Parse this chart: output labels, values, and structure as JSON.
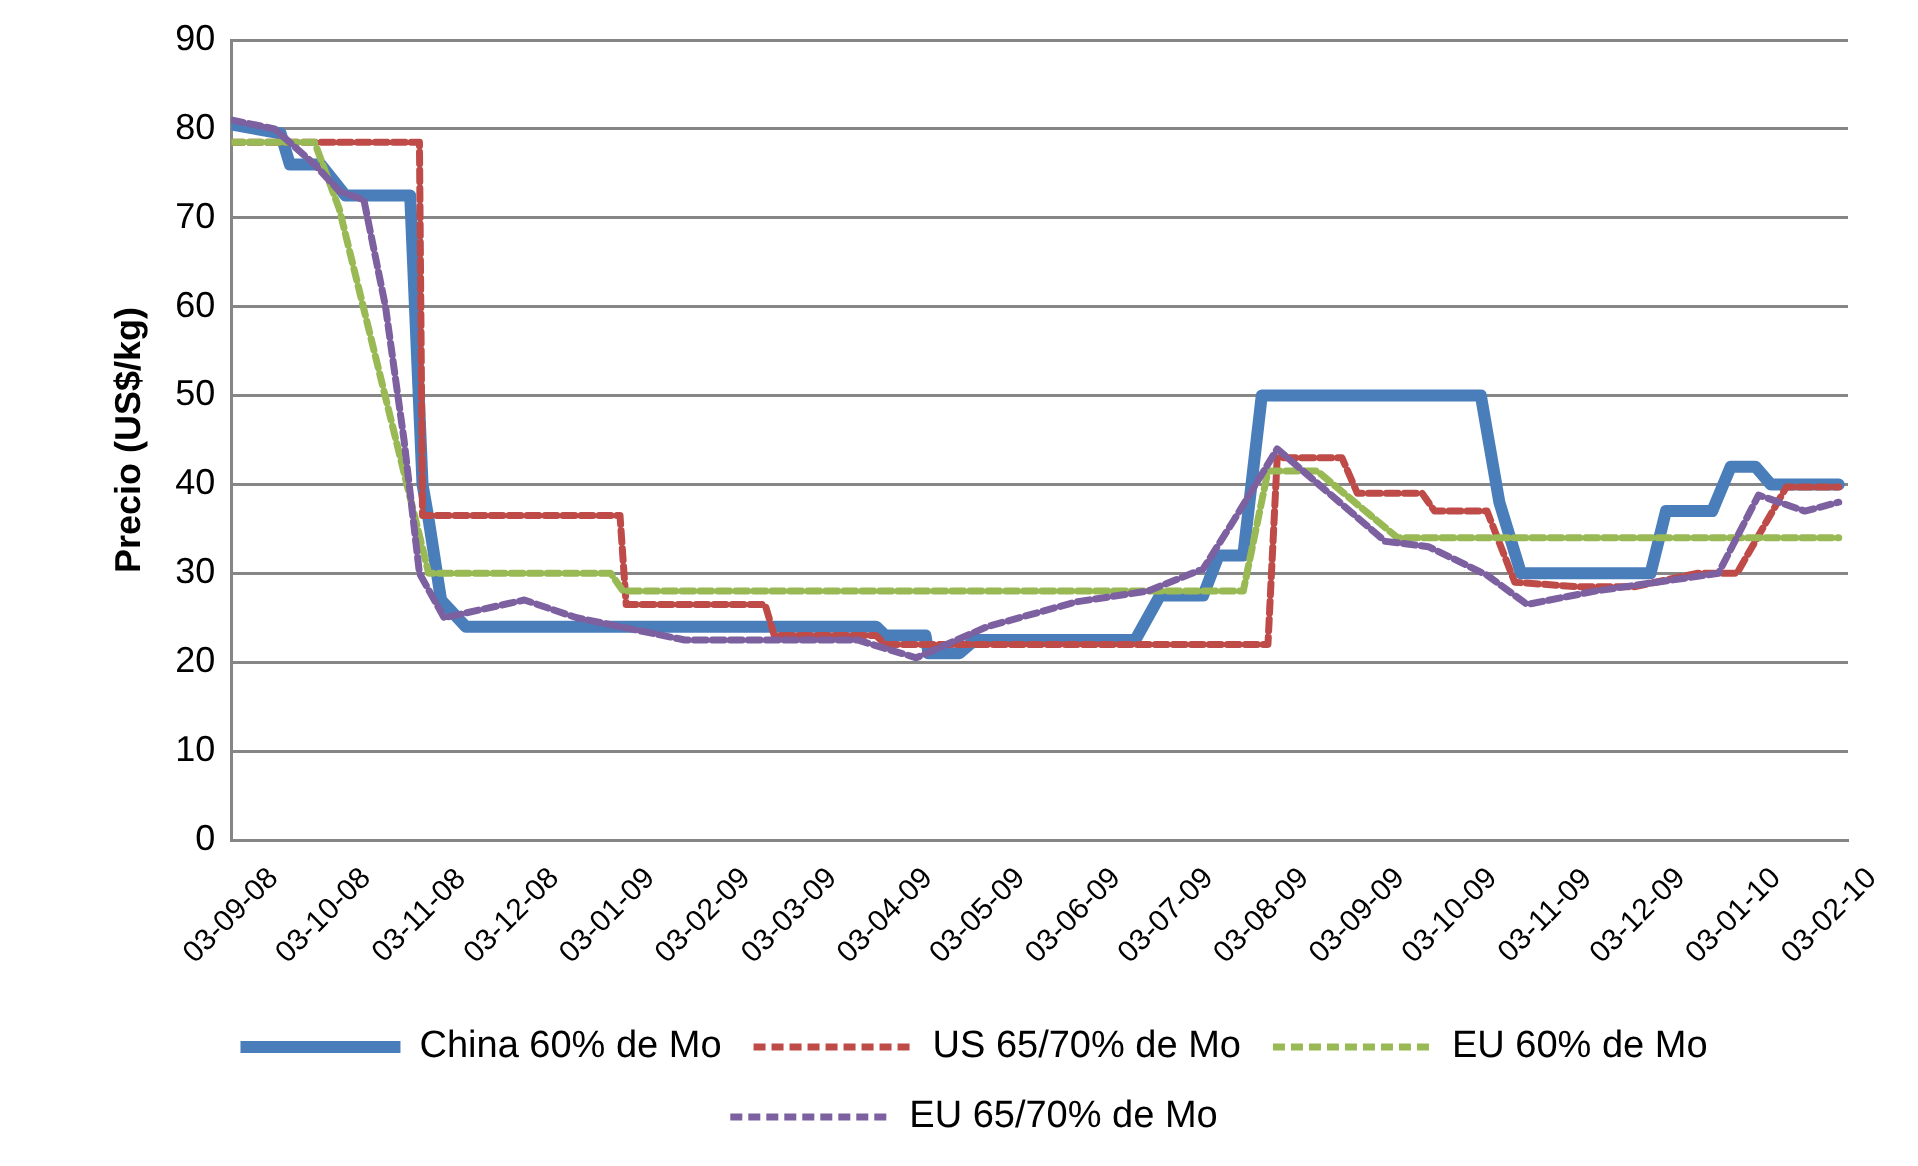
{
  "chart_data": {
    "type": "line",
    "ylabel": "Precio (US$/kg)",
    "xlim": [
      "2008-09-03",
      "2010-02-09"
    ],
    "xticks": [
      {
        "value": "2008-09-03",
        "label": "03-09-08"
      },
      {
        "value": "2008-10-03",
        "label": "03-10-08"
      },
      {
        "value": "2008-11-03",
        "label": "03-11-08"
      },
      {
        "value": "2008-12-03",
        "label": "03-12-08"
      },
      {
        "value": "2009-01-03",
        "label": "03-01-09"
      },
      {
        "value": "2009-02-03",
        "label": "03-02-09"
      },
      {
        "value": "2009-03-03",
        "label": "03-03-09"
      },
      {
        "value": "2009-04-03",
        "label": "03-04-09"
      },
      {
        "value": "2009-05-03",
        "label": "03-05-09"
      },
      {
        "value": "2009-06-03",
        "label": "03-06-09"
      },
      {
        "value": "2009-07-03",
        "label": "03-07-09"
      },
      {
        "value": "2009-08-03",
        "label": "03-08-09"
      },
      {
        "value": "2009-09-03",
        "label": "03-09-09"
      },
      {
        "value": "2009-10-03",
        "label": "03-10-09"
      },
      {
        "value": "2009-11-03",
        "label": "03-11-09"
      },
      {
        "value": "2009-12-03",
        "label": "03-12-09"
      },
      {
        "value": "2010-01-03",
        "label": "03-01-10"
      },
      {
        "value": "2010-02-03",
        "label": "03-02-10"
      }
    ],
    "ylim": [
      0,
      90
    ],
    "yticks": [
      0,
      10,
      20,
      30,
      40,
      50,
      60,
      70,
      80,
      90
    ],
    "grid": "y",
    "legend": "bottom",
    "marker": "none",
    "series": [
      {
        "name": "China 60% de Mo",
        "color": "#4a7ebb",
        "line_style": "solid",
        "x": [
          "2008-09-03",
          "2008-09-19",
          "2008-09-22",
          "2008-10-02",
          "2008-10-10",
          "2008-10-31",
          "2008-11-04",
          "2008-11-06",
          "2008-11-10",
          "2008-11-18",
          "2009-03-31",
          "2009-04-03",
          "2009-04-16",
          "2009-04-17",
          "2009-04-27",
          "2009-05-02",
          "2009-06-23",
          "2009-07-01",
          "2009-07-15",
          "2009-07-20",
          "2009-07-28",
          "2009-08-03",
          "2009-10-13",
          "2009-10-19",
          "2009-10-26",
          "2009-12-07",
          "2009-12-12",
          "2009-12-27",
          "2010-01-02",
          "2010-01-10",
          "2010-01-15",
          "2010-02-06"
        ],
        "values": [
          80.5,
          79.5,
          76,
          76,
          72.5,
          72.5,
          40,
          36,
          27,
          24,
          24,
          23,
          23,
          21,
          21,
          22.5,
          22.5,
          27.5,
          27.5,
          32,
          32,
          50,
          50,
          38,
          30,
          30,
          37,
          37,
          42,
          42,
          40,
          40
        ]
      },
      {
        "name": "US 65/70% de Mo",
        "color": "#be4b48",
        "line_style": "dashed",
        "x": [
          "2008-09-03",
          "2008-11-03",
          "2008-11-04",
          "2009-01-07",
          "2009-01-09",
          "2009-02-23",
          "2009-02-26",
          "2009-03-31",
          "2009-04-03",
          "2009-08-05",
          "2009-08-08",
          "2009-08-29",
          "2009-09-03",
          "2009-09-24",
          "2009-09-28",
          "2009-10-15",
          "2009-10-24",
          "2009-11-13",
          "2009-12-02",
          "2009-12-22",
          "2010-01-04",
          "2010-01-20",
          "2010-02-06"
        ],
        "values": [
          78.5,
          78.5,
          36.5,
          36.5,
          26.5,
          26.5,
          23,
          23,
          22,
          22,
          43,
          43,
          39,
          39,
          37,
          37,
          29,
          28.5,
          28.5,
          30,
          30,
          39.7,
          39.7
        ]
      },
      {
        "name": "EU 60% de Mo",
        "color": "#98b954",
        "line_style": "dashed",
        "x": [
          "2008-09-03",
          "2008-09-30",
          "2008-10-08",
          "2008-11-06",
          "2009-01-04",
          "2009-01-08",
          "2009-07-28",
          "2009-08-05",
          "2009-08-21",
          "2009-09-16",
          "2010-02-06"
        ],
        "values": [
          78.5,
          78.5,
          71,
          30,
          30,
          28,
          28,
          41.5,
          41.5,
          34,
          34
        ]
      },
      {
        "name": "EU 65/70% de Mo",
        "color": "#7d60a0",
        "line_style": "dashed",
        "x": [
          "2008-09-03",
          "2008-09-17",
          "2008-09-30",
          "2008-10-08",
          "2008-10-16",
          "2008-10-23",
          "2008-10-29",
          "2008-11-03",
          "2008-11-11",
          "2008-12-07",
          "2008-12-24",
          "2009-01-28",
          "2009-03-25",
          "2009-04-13",
          "2009-05-06",
          "2009-06-04",
          "2009-06-27",
          "2009-07-15",
          "2009-07-25",
          "2009-08-08",
          "2009-09-12",
          "2009-09-26",
          "2009-10-15",
          "2009-10-28",
          "2009-11-19",
          "2009-12-15",
          "2009-12-29",
          "2010-01-11",
          "2010-01-26",
          "2010-02-06"
        ],
        "values": [
          81,
          80,
          76,
          73,
          72,
          60,
          45,
          30,
          25,
          27,
          25,
          22.5,
          22.5,
          20.5,
          24,
          26.8,
          28,
          30.5,
          36,
          44,
          33.6,
          33,
          29.8,
          26.5,
          28,
          29.3,
          30,
          38.8,
          37,
          38
        ]
      }
    ]
  }
}
